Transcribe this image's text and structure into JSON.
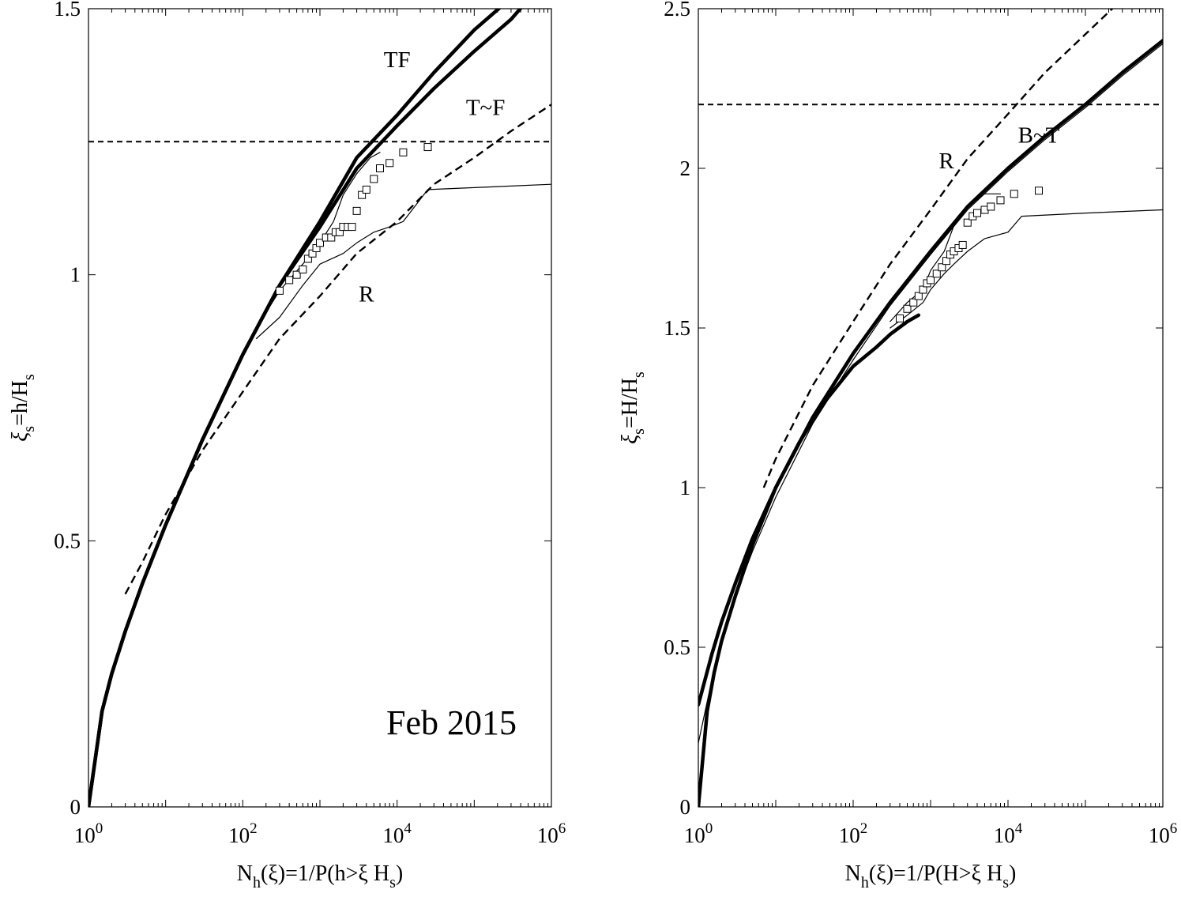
{
  "chart_data": [
    {
      "type": "line",
      "xscale": "log",
      "xlim": [
        1,
        1000000
      ],
      "ylim": [
        0,
        1.5
      ],
      "xticks": [
        1,
        100,
        10000,
        1000000
      ],
      "xtick_labels": [
        {
          "base": "10",
          "exp": "0"
        },
        {
          "base": "10",
          "exp": "2"
        },
        {
          "base": "10",
          "exp": "4"
        },
        {
          "base": "10",
          "exp": "6"
        }
      ],
      "yticks": [
        0,
        0.5,
        1,
        1.5
      ],
      "ytick_labels": [
        "0",
        "0.5",
        "1",
        "1.5"
      ],
      "xlabel": {
        "main": "N",
        "sub1": "h",
        "mid": "(ξ)=1/P(h>ξ H",
        "sub2": "s",
        "end": ")"
      },
      "ylabel": {
        "main": "ξ",
        "sub1": "s",
        "mid": "=h/H",
        "sub2": "s"
      },
      "annotation": "Feb 2015",
      "series": [
        {
          "name": "TF",
          "style": "thick",
          "label_at": [
            10000.0,
            1.39
          ],
          "x": [
            1,
            1.5,
            2,
            3,
            5,
            10,
            30,
            100,
            300,
            1000,
            3000,
            10000,
            30000,
            100000,
            300000
          ],
          "y": [
            0,
            0.18,
            0.25,
            0.33,
            0.42,
            0.53,
            0.69,
            0.85,
            0.98,
            1.1,
            1.22,
            1.3,
            1.38,
            1.46,
            1.52
          ]
        },
        {
          "name": "T~F",
          "style": "thick",
          "label_at": [
            140000.0,
            1.3
          ],
          "x": [
            1,
            1.5,
            2,
            3,
            5,
            10,
            30,
            100,
            300,
            1000,
            3000,
            10000,
            30000,
            100000,
            300000,
            600000
          ],
          "y": [
            0,
            0.18,
            0.25,
            0.33,
            0.42,
            0.53,
            0.69,
            0.85,
            0.98,
            1.09,
            1.2,
            1.28,
            1.35,
            1.42,
            1.48,
            1.53
          ]
        },
        {
          "name": "R",
          "style": "dashed",
          "label_at": [
            4000,
            0.95
          ],
          "x": [
            3,
            5,
            10,
            30,
            100,
            300,
            1000,
            3000,
            10000,
            30000,
            100000,
            300000,
            1000000
          ],
          "y": [
            0.4,
            0.46,
            0.55,
            0.67,
            0.78,
            0.88,
            0.96,
            1.04,
            1.1,
            1.17,
            1.22,
            1.27,
            1.32
          ]
        },
        {
          "name": "",
          "style": "dashed-flat",
          "x": [
            1,
            1000000
          ],
          "y": [
            1.25,
            1.25
          ]
        },
        {
          "name": "",
          "style": "thin",
          "x": [
            150,
            300,
            600,
            1000,
            1500,
            2000,
            3000,
            4500,
            6000
          ],
          "y": [
            0.9,
            0.97,
            1.02,
            1.06,
            1.1,
            1.15,
            1.19,
            1.22,
            1.23
          ]
        },
        {
          "name": "",
          "style": "thin",
          "x": [
            150,
            300,
            600,
            1000,
            2000,
            3000,
            5000,
            8000,
            12000,
            25000,
            1000000
          ],
          "y": [
            0.88,
            0.92,
            0.98,
            1.02,
            1.04,
            1.06,
            1.08,
            1.09,
            1.1,
            1.16,
            1.17
          ]
        },
        {
          "name": "",
          "style": "squares",
          "x": [
            300,
            400,
            500,
            600,
            700,
            800,
            900,
            1000,
            1200,
            1400,
            1600,
            1800,
            2000,
            2300,
            2600,
            3000,
            3500,
            4000,
            5000,
            6000,
            8000,
            12000,
            25000
          ],
          "y": [
            0.97,
            0.99,
            1.0,
            1.01,
            1.03,
            1.04,
            1.05,
            1.06,
            1.07,
            1.07,
            1.08,
            1.08,
            1.09,
            1.09,
            1.09,
            1.12,
            1.15,
            1.16,
            1.18,
            1.2,
            1.21,
            1.23,
            1.24
          ]
        }
      ]
    },
    {
      "type": "line",
      "xscale": "log",
      "xlim": [
        1,
        1000000
      ],
      "ylim": [
        0,
        2.5
      ],
      "xticks": [
        1,
        100,
        10000,
        1000000
      ],
      "xtick_labels": [
        {
          "base": "10",
          "exp": "0"
        },
        {
          "base": "10",
          "exp": "2"
        },
        {
          "base": "10",
          "exp": "4"
        },
        {
          "base": "10",
          "exp": "6"
        }
      ],
      "yticks": [
        0,
        0.5,
        1,
        1.5,
        2,
        2.5
      ],
      "ytick_labels": [
        "0",
        "0.5",
        "1",
        "1.5",
        "2",
        "2.5"
      ],
      "xlabel": {
        "main": "N",
        "sub1": "h",
        "mid": "(ξ)=1/P(H>ξ H",
        "sub2": "s",
        "end": ")"
      },
      "ylabel": {
        "main": "ξ",
        "sub1": "s",
        "mid": "=H/H",
        "sub2": "s"
      },
      "series": [
        {
          "name": "B~T",
          "style": "thick",
          "label_at": [
            25000.0,
            2.08
          ],
          "x": [
            1,
            1.5,
            2,
            3,
            5,
            10,
            30,
            100,
            300,
            1000,
            3000,
            10000,
            30000,
            100000,
            300000,
            1000000
          ],
          "y": [
            0.32,
            0.48,
            0.58,
            0.7,
            0.84,
            1.0,
            1.22,
            1.42,
            1.58,
            1.74,
            1.88,
            2.0,
            2.1,
            2.2,
            2.3,
            2.4
          ]
        },
        {
          "name": "",
          "style": "thin",
          "x": [
            1,
            1.5,
            2,
            3,
            5,
            10,
            30,
            100,
            300,
            1000,
            3000,
            10000,
            30000,
            100000,
            300000,
            1000000
          ],
          "y": [
            0.2,
            0.4,
            0.52,
            0.66,
            0.8,
            0.97,
            1.2,
            1.4,
            1.57,
            1.73,
            1.87,
            1.99,
            2.09,
            2.19,
            2.29,
            2.39
          ]
        },
        {
          "name": "R",
          "style": "dashed",
          "label_at": [
            1600,
            2.0
          ],
          "x": [
            7,
            10,
            30,
            100,
            300,
            1000,
            3000,
            10000,
            30000,
            100000,
            300000
          ],
          "y": [
            1.0,
            1.09,
            1.32,
            1.52,
            1.7,
            1.87,
            2.03,
            2.17,
            2.3,
            2.42,
            2.53
          ]
        },
        {
          "name": "",
          "style": "dashed-flat",
          "x": [
            1,
            1000000
          ],
          "y": [
            2.2,
            2.2
          ]
        },
        {
          "name": "",
          "style": "thick",
          "x": [
            1,
            1.3,
            1.6,
            2,
            3,
            5,
            10,
            20,
            40,
            100,
            200,
            300,
            500,
            700
          ],
          "y": [
            0,
            0.3,
            0.42,
            0.52,
            0.66,
            0.82,
            1.0,
            1.14,
            1.26,
            1.38,
            1.44,
            1.48,
            1.52,
            1.54
          ]
        },
        {
          "name": "",
          "style": "thin",
          "x": [
            300,
            500,
            800,
            1000,
            1500,
            2000,
            3000,
            5000,
            8000
          ],
          "y": [
            1.52,
            1.58,
            1.62,
            1.68,
            1.74,
            1.82,
            1.88,
            1.92,
            1.92
          ]
        },
        {
          "name": "",
          "style": "thin",
          "x": [
            300,
            500,
            800,
            1000,
            1500,
            2000,
            3000,
            5000,
            10000,
            15000,
            100000,
            1000000
          ],
          "y": [
            1.5,
            1.54,
            1.58,
            1.62,
            1.67,
            1.7,
            1.74,
            1.78,
            1.8,
            1.85,
            1.86,
            1.87
          ]
        },
        {
          "name": "",
          "style": "squares",
          "x": [
            400,
            500,
            600,
            700,
            800,
            900,
            1000,
            1200,
            1400,
            1600,
            1800,
            2000,
            2300,
            2600,
            3000,
            3500,
            4000,
            5000,
            6000,
            8000,
            12000,
            25000
          ],
          "y": [
            1.53,
            1.56,
            1.58,
            1.6,
            1.62,
            1.64,
            1.65,
            1.67,
            1.69,
            1.71,
            1.73,
            1.74,
            1.75,
            1.76,
            1.83,
            1.85,
            1.86,
            1.87,
            1.88,
            1.9,
            1.92,
            1.93
          ]
        }
      ]
    }
  ]
}
